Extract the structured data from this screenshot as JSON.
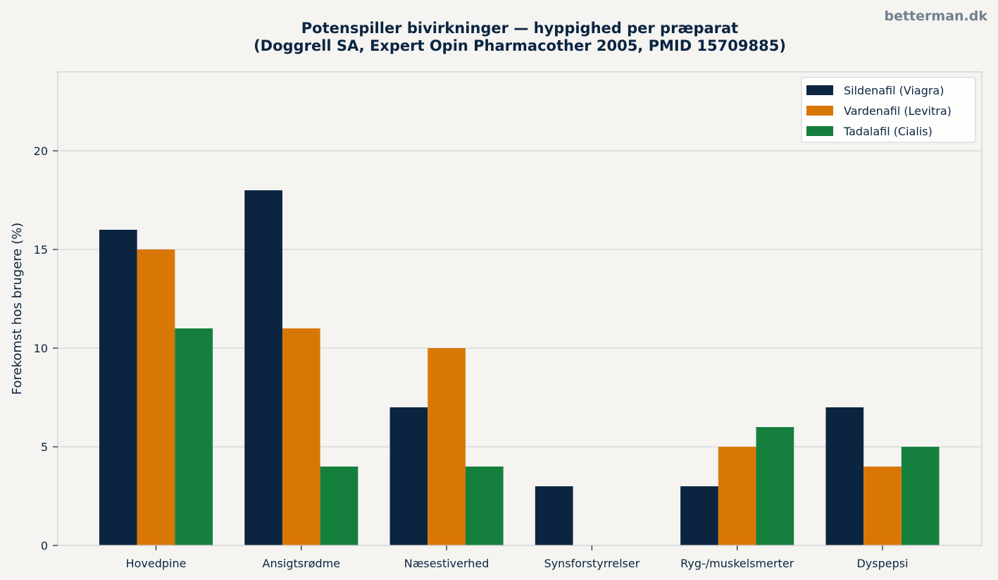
{
  "brand": "betterman.dk",
  "colors": {
    "background": "#f5f4f1",
    "text": "#0b2541",
    "grid": "#d3d3d6",
    "series": [
      "#0b2541",
      "#d97706",
      "#15803d"
    ]
  },
  "chart_data": {
    "type": "bar",
    "title": "Potenspiller bivirkninger — hyppighed per præparat",
    "subtitle": "(Doggrell SA, Expert Opin Pharmacother 2005, PMID 15709885)",
    "xlabel": "",
    "ylabel": "Forekomst hos brugere (%)",
    "ylim": [
      0,
      24
    ],
    "yticks": [
      0,
      5,
      10,
      15,
      20
    ],
    "grid": true,
    "legend_position": "top-right",
    "categories": [
      "Hovedpine",
      "Ansigtsrødme",
      "Næsestiverhed",
      "Synsforstyrrelser",
      "Ryg-/muskelsmerter",
      "Dyspepsi"
    ],
    "series": [
      {
        "name": "Sildenafil (Viagra)",
        "color": "#0b2541",
        "values": [
          16,
          18,
          7,
          3,
          3,
          7
        ]
      },
      {
        "name": "Vardenafil (Levitra)",
        "color": "#d97706",
        "values": [
          15,
          11,
          10,
          0,
          5,
          4
        ]
      },
      {
        "name": "Tadalafil (Cialis)",
        "color": "#15803d",
        "values": [
          11,
          4,
          4,
          0,
          6,
          5
        ]
      }
    ]
  }
}
